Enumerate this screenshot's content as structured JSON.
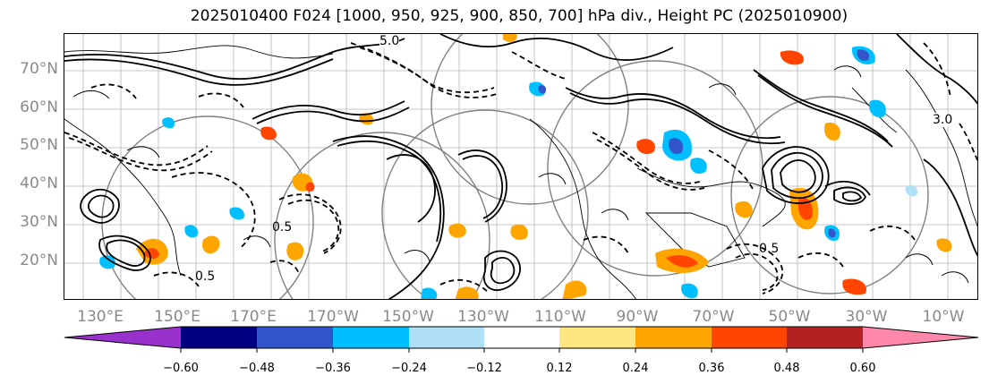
{
  "title": "2025010400 F024 [1000, 950, 925, 900, 850, 700] hPa div., Height PC (2025010900)",
  "lat_labels": [
    "70°N",
    "60°N",
    "50°N",
    "40°N",
    "30°N",
    "20°N"
  ],
  "lon_labels": [
    "130°E",
    "150°E",
    "170°E",
    "170°W",
    "150°W",
    "130°W",
    "110°W",
    "90°W",
    "70°W",
    "50°W",
    "30°W",
    "10°W"
  ],
  "contour_labels": [
    "5.0",
    "0.5",
    "0.5",
    "0.5",
    "3.0"
  ],
  "colorbar": {
    "ticks": [
      "−0.60",
      "−0.48",
      "−0.36",
      "−0.24",
      "−0.12",
      "0.12",
      "0.24",
      "0.36",
      "0.48",
      "0.60"
    ],
    "colors": {
      "under": "#9932cc",
      "b1": "#000080",
      "b2": "#3355cc",
      "b3": "#00bfff",
      "b4": "#afe0f8",
      "b5": "#ffffff",
      "b6": "#ffe680",
      "b7": "#ffa500",
      "b8": "#ff4500",
      "b9": "#b22222",
      "over": "#ff88aa"
    }
  }
}
